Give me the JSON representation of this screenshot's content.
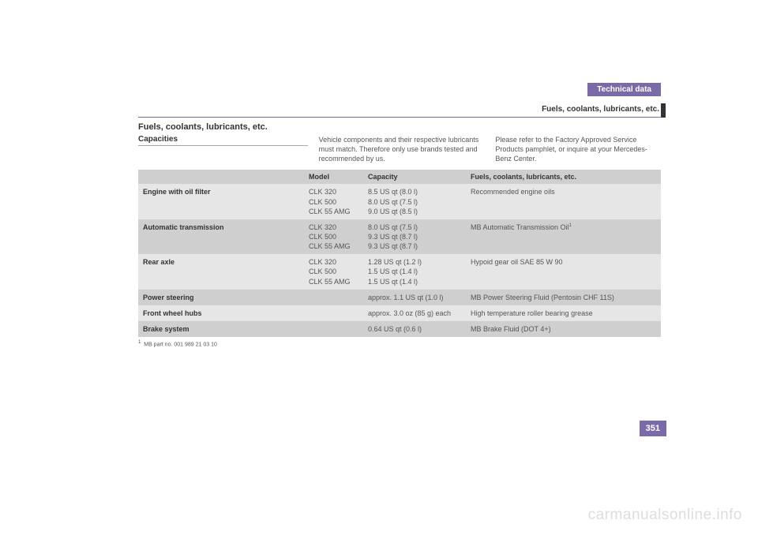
{
  "header": {
    "tab": "Technical data",
    "subtitle": "Fuels, coolants, lubricants, etc."
  },
  "section_title": "Fuels, coolants, lubricants, etc.",
  "subheading": "Capacities",
  "intro_mid": "Vehicle components and their respective lubricants must match. Therefore only use brands tested and recommended by us.",
  "intro_right": "Please refer to the Factory Approved Service Products pamphlet, or inquire at your Mercedes-Benz Center.",
  "table": {
    "headers": {
      "model": "Model",
      "capacity": "Capacity",
      "fuels": "Fuels, coolants, lubricants, etc."
    },
    "rows": [
      {
        "label": "Engine with oil filter",
        "model": "CLK 320\nCLK 500\nCLK 55 AMG",
        "capacity": "8.5 US qt (8.0 l)\n8.0 US qt (7.5 l)\n9.0 US qt (8.5 l)",
        "fuels": "Recommended engine oils"
      },
      {
        "label": "Automatic transmission",
        "model": "CLK 320\nCLK 500\nCLK 55 AMG",
        "capacity": "8.0 US qt (7.5 l)\n9.3 US qt (8.7 l)\n9.3 US qt (8.7 l)",
        "fuels": "MB Automatic Transmission Oil",
        "fuels_sup": "1"
      },
      {
        "label": "Rear axle",
        "model": "CLK 320\nCLK 500\nCLK 55 AMG",
        "capacity": "1.28 US qt (1.2 l)\n1.5 US qt (1.4 l)\n1.5 US qt (1.4 l)",
        "fuels": "Hypoid gear oil SAE 85 W 90"
      },
      {
        "label": "Power steering",
        "model": "",
        "capacity": "approx. 1.1 US qt (1.0 l)",
        "fuels": "MB Power Steering Fluid (Pentosin CHF 11S)"
      },
      {
        "label": "Front wheel hubs",
        "model": "",
        "capacity": "approx. 3.0 oz (85 g) each",
        "fuels": "High temperature roller bearing grease"
      },
      {
        "label": "Brake system",
        "model": "",
        "capacity": "0.64 US qt (0.6 l)",
        "fuels": "MB Brake Fluid (DOT 4+)"
      }
    ]
  },
  "footnote": {
    "marker": "1",
    "text": "MB part no. 001 989 21 03 10"
  },
  "page_number": "351",
  "watermark": "carmanualsonline.info"
}
